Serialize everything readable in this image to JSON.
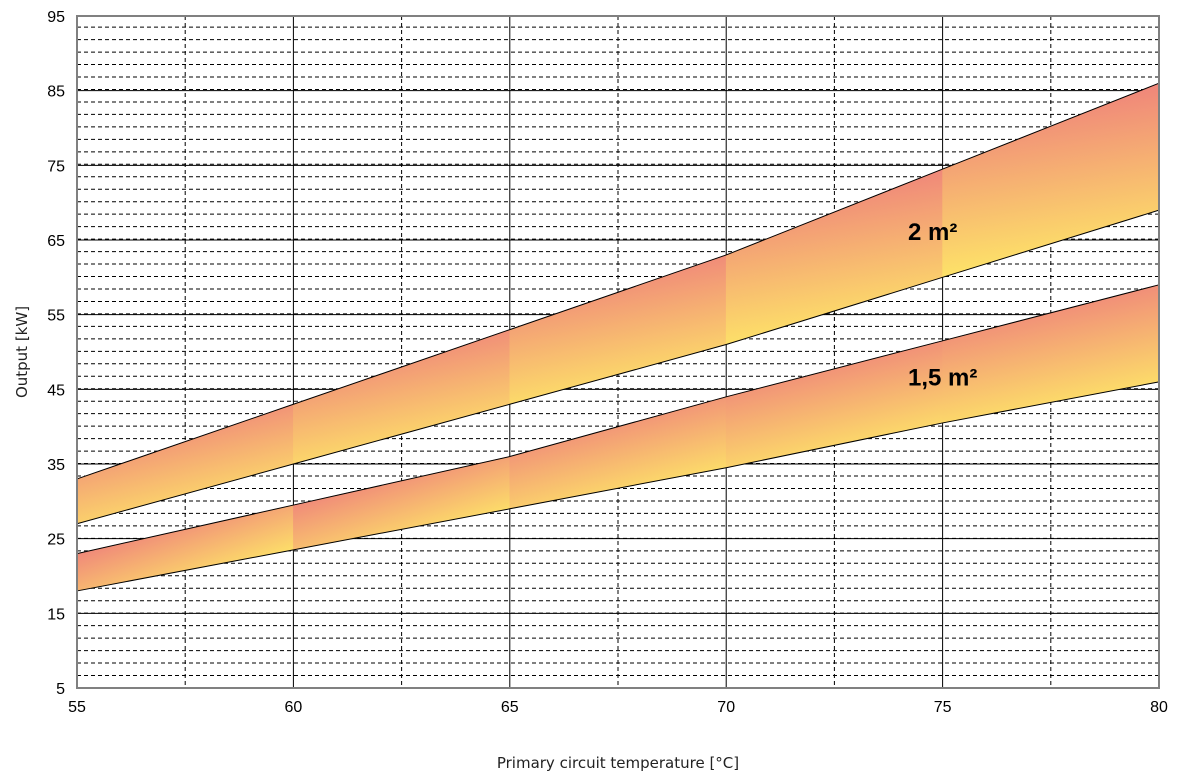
{
  "chart_data": {
    "type": "area",
    "xlabel": "Primary circuit temperature [°C]",
    "ylabel": "Output [kW]",
    "xlim": [
      55,
      80
    ],
    "ylim": [
      5,
      95
    ],
    "x_ticks": [
      55,
      60,
      65,
      70,
      75,
      80
    ],
    "y_ticks": [
      5,
      15,
      25,
      35,
      45,
      55,
      65,
      75,
      85,
      95
    ],
    "x_ticks_labels": [
      "55",
      "60",
      "65",
      "70",
      "75",
      "80"
    ],
    "y_ticks_labels": [
      "5",
      "15",
      "25",
      "35",
      "45",
      "55",
      "65",
      "75",
      "85",
      "95"
    ],
    "grid": true,
    "minor_x_step": 2.5,
    "minor_y_step": 1.67,
    "bands": [
      {
        "name": "2 m²",
        "x": [
          55,
          60,
          65,
          70,
          75,
          80
        ],
        "upper": [
          33,
          43,
          53,
          63,
          74.5,
          86
        ],
        "lower": [
          27,
          35,
          43,
          51,
          60,
          69
        ],
        "label_x": 74.2,
        "label_y": 65,
        "color_top": "#ee7c7c",
        "color_bottom": "#ffee66"
      },
      {
        "name": "1,5 m²",
        "x": [
          55,
          60,
          65,
          70,
          75,
          80
        ],
        "upper": [
          23,
          29.5,
          36,
          44,
          51.5,
          59
        ],
        "lower": [
          18,
          23.5,
          29,
          34.5,
          40.5,
          46
        ],
        "label_x": 74.2,
        "label_y": 45.5,
        "color_top": "#ee7c7c",
        "color_bottom": "#ffee66"
      }
    ]
  }
}
